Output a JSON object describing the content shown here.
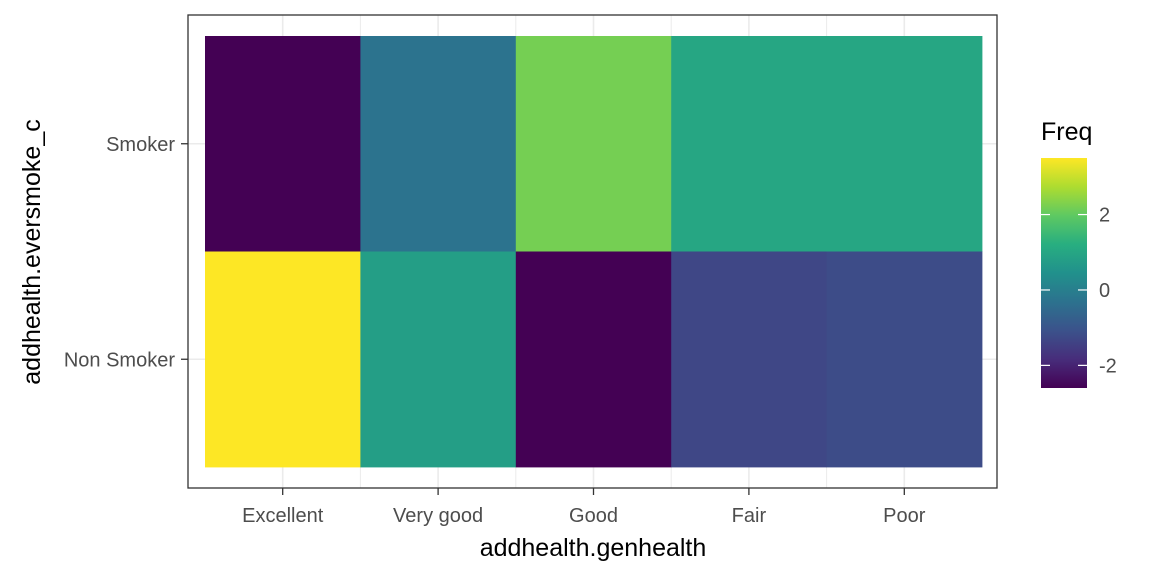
{
  "chart_data": {
    "type": "heatmap",
    "x_categories": [
      "Excellent",
      "Very good",
      "Good",
      "Fair",
      "Poor"
    ],
    "y_categories": [
      "Non Smoker",
      "Smoker"
    ],
    "xlabel": "addhealth.genhealth",
    "ylabel": "addhealth.eversmoke_c",
    "legend": {
      "title": "Freq",
      "ticks": [
        -2,
        0,
        2
      ],
      "tick_labels": [
        "-2",
        "0",
        "2"
      ],
      "range": [
        -2.6,
        3.5
      ],
      "palette": "viridis",
      "placement": "right"
    },
    "cells": [
      {
        "x": "Excellent",
        "y": "Smoker",
        "value": -2.6
      },
      {
        "x": "Very good",
        "y": "Smoker",
        "value": -0.3
      },
      {
        "x": "Good",
        "y": "Smoker",
        "value": 2.2
      },
      {
        "x": "Fair",
        "y": "Smoker",
        "value": 1.0
      },
      {
        "x": "Poor",
        "y": "Smoker",
        "value": 1.0
      },
      {
        "x": "Excellent",
        "y": "Non Smoker",
        "value": 3.5
      },
      {
        "x": "Very good",
        "y": "Non Smoker",
        "value": 0.8
      },
      {
        "x": "Good",
        "y": "Non Smoker",
        "value": -2.6
      },
      {
        "x": "Fair",
        "y": "Non Smoker",
        "value": -1.3
      },
      {
        "x": "Poor",
        "y": "Non Smoker",
        "value": -1.2
      }
    ],
    "grid": true
  }
}
